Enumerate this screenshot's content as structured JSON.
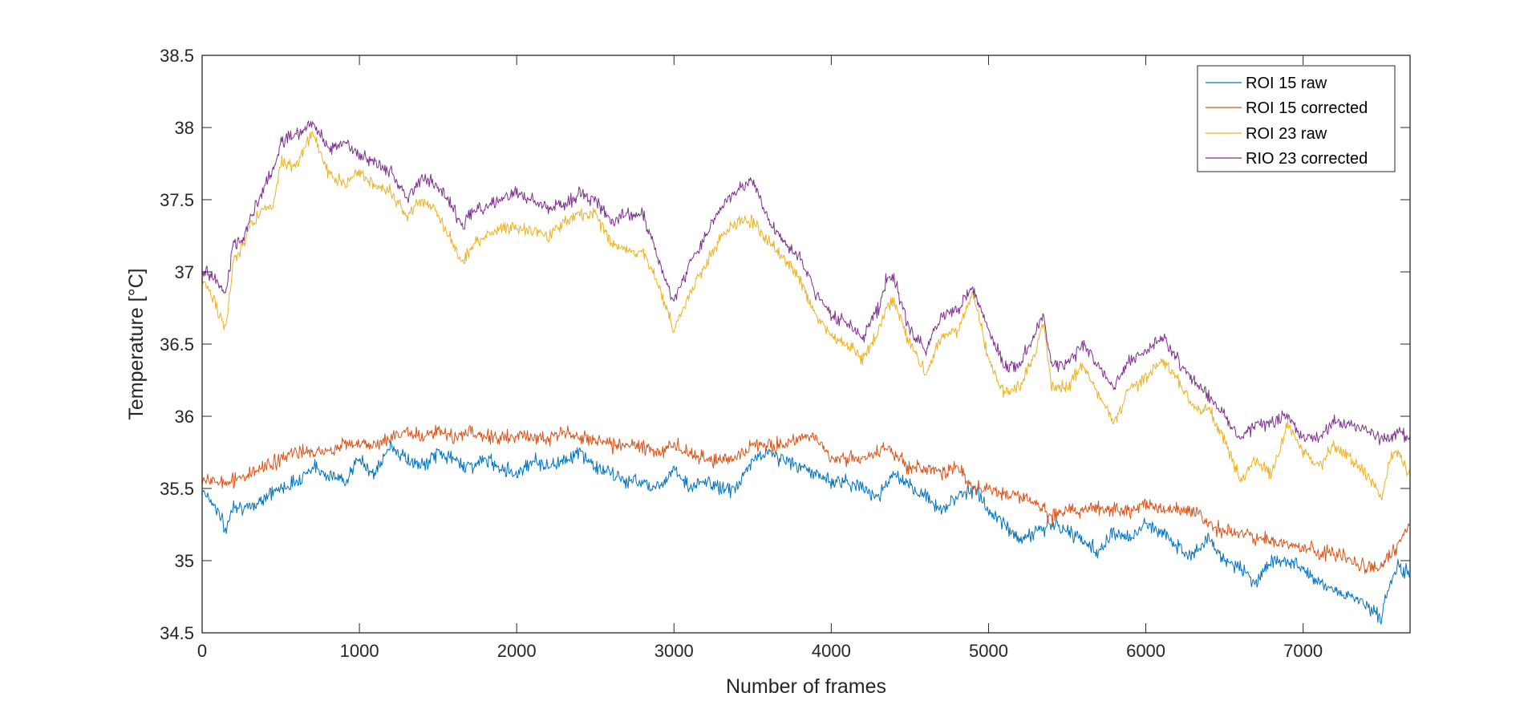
{
  "chart_data": {
    "type": "line",
    "title": "",
    "xlabel": "Number of frames",
    "ylabel": "Temperature [°C]",
    "xlim": [
      0,
      7680
    ],
    "ylim": [
      34.5,
      38.5
    ],
    "xticks": [
      0,
      1000,
      2000,
      3000,
      4000,
      5000,
      6000,
      7000
    ],
    "yticks": [
      34.5,
      35,
      35.5,
      36,
      36.5,
      37,
      37.5,
      38,
      38.5
    ],
    "xtick_labels": [
      "0",
      "1000",
      "2000",
      "3000",
      "4000",
      "5000",
      "6000",
      "7000"
    ],
    "ytick_labels": [
      "34.5",
      "35",
      "35.5",
      "36",
      "36.5",
      "37",
      "37.5",
      "38",
      "38.5"
    ],
    "grid": false,
    "box": true,
    "legend_position": "top-right",
    "series": [
      {
        "name": "ROI 15 raw",
        "color": "#0072BD",
        "noise": 0.05,
        "x": [
          0,
          100,
          150,
          200,
          300,
          400,
          500,
          600,
          700,
          800,
          900,
          1000,
          1100,
          1200,
          1300,
          1400,
          1500,
          1600,
          1700,
          1800,
          1900,
          2000,
          2100,
          2200,
          2300,
          2400,
          2500,
          2600,
          2700,
          2800,
          2900,
          3000,
          3100,
          3200,
          3300,
          3400,
          3500,
          3600,
          3700,
          3800,
          3900,
          4000,
          4100,
          4200,
          4300,
          4400,
          4500,
          4600,
          4700,
          4800,
          4900,
          5000,
          5100,
          5200,
          5300,
          5400,
          5500,
          5600,
          5700,
          5800,
          5900,
          6000,
          6100,
          6200,
          6300,
          6400,
          6500,
          6600,
          6700,
          6800,
          6900,
          7000,
          7100,
          7200,
          7300,
          7400,
          7500,
          7550,
          7600,
          7680
        ],
        "y": [
          35.5,
          35.35,
          35.2,
          35.4,
          35.35,
          35.45,
          35.5,
          35.55,
          35.65,
          35.6,
          35.55,
          35.7,
          35.6,
          35.8,
          35.7,
          35.65,
          35.75,
          35.7,
          35.65,
          35.7,
          35.65,
          35.6,
          35.7,
          35.65,
          35.7,
          35.75,
          35.65,
          35.6,
          35.55,
          35.55,
          35.5,
          35.65,
          35.5,
          35.55,
          35.5,
          35.5,
          35.7,
          35.75,
          35.7,
          35.65,
          35.6,
          35.55,
          35.55,
          35.5,
          35.45,
          35.6,
          35.5,
          35.45,
          35.35,
          35.45,
          35.5,
          35.35,
          35.25,
          35.15,
          35.2,
          35.25,
          35.2,
          35.15,
          35.05,
          35.2,
          35.15,
          35.25,
          35.2,
          35.1,
          35.05,
          35.15,
          35.0,
          34.95,
          34.85,
          35.0,
          35.0,
          34.95,
          34.85,
          34.8,
          34.75,
          34.7,
          34.6,
          34.85,
          34.95,
          34.9
        ]
      },
      {
        "name": "ROI 15 corrected",
        "color": "#D95319",
        "noise": 0.05,
        "x": [
          0,
          100,
          200,
          300,
          400,
          500,
          600,
          700,
          800,
          900,
          1000,
          1100,
          1200,
          1300,
          1400,
          1500,
          1600,
          1700,
          1800,
          1900,
          2000,
          2100,
          2200,
          2300,
          2400,
          2500,
          2600,
          2700,
          2800,
          2900,
          3000,
          3100,
          3200,
          3300,
          3400,
          3500,
          3600,
          3700,
          3800,
          3900,
          4000,
          4100,
          4200,
          4300,
          4400,
          4500,
          4600,
          4700,
          4800,
          4900,
          5000,
          5100,
          5200,
          5300,
          5400,
          5500,
          5600,
          5700,
          5800,
          5900,
          6000,
          6100,
          6200,
          6300,
          6400,
          6500,
          6600,
          6700,
          6800,
          6900,
          7000,
          7100,
          7200,
          7300,
          7400,
          7500,
          7600,
          7680
        ],
        "y": [
          35.55,
          35.55,
          35.55,
          35.6,
          35.65,
          35.7,
          35.75,
          35.75,
          35.75,
          35.8,
          35.8,
          35.8,
          35.85,
          35.9,
          35.85,
          35.9,
          35.85,
          35.9,
          35.85,
          35.85,
          35.85,
          35.85,
          35.85,
          35.9,
          35.85,
          35.85,
          35.8,
          35.8,
          35.8,
          35.75,
          35.8,
          35.75,
          35.7,
          35.7,
          35.7,
          35.8,
          35.8,
          35.8,
          35.85,
          35.85,
          35.7,
          35.7,
          35.7,
          35.75,
          35.75,
          35.65,
          35.65,
          35.6,
          35.65,
          35.5,
          35.5,
          35.45,
          35.45,
          35.4,
          35.3,
          35.35,
          35.35,
          35.35,
          35.35,
          35.35,
          35.4,
          35.35,
          35.35,
          35.35,
          35.25,
          35.2,
          35.2,
          35.15,
          35.15,
          35.1,
          35.1,
          35.05,
          35.05,
          35.0,
          34.95,
          34.95,
          35.1,
          35.25
        ]
      },
      {
        "name": "ROI 23 raw",
        "color": "#EDB120",
        "noise": 0.045,
        "x": [
          0,
          80,
          150,
          200,
          250,
          300,
          400,
          450,
          500,
          600,
          700,
          800,
          900,
          1000,
          1100,
          1200,
          1300,
          1400,
          1500,
          1600,
          1650,
          1700,
          1800,
          1900,
          2000,
          2100,
          2200,
          2300,
          2400,
          2500,
          2600,
          2700,
          2800,
          2900,
          3000,
          3100,
          3200,
          3300,
          3400,
          3500,
          3600,
          3700,
          3800,
          3900,
          4000,
          4100,
          4200,
          4300,
          4350,
          4400,
          4500,
          4600,
          4700,
          4800,
          4900,
          5000,
          5100,
          5200,
          5300,
          5350,
          5400,
          5500,
          5600,
          5700,
          5800,
          5900,
          6000,
          6100,
          6200,
          6300,
          6400,
          6500,
          6600,
          6700,
          6800,
          6900,
          7000,
          7100,
          7200,
          7300,
          7400,
          7500,
          7550,
          7600,
          7680
        ],
        "y": [
          36.95,
          36.8,
          36.6,
          37.1,
          37.15,
          37.3,
          37.45,
          37.45,
          37.75,
          37.75,
          37.95,
          37.7,
          37.6,
          37.7,
          37.6,
          37.55,
          37.4,
          37.5,
          37.4,
          37.2,
          37.05,
          37.15,
          37.25,
          37.3,
          37.3,
          37.3,
          37.25,
          37.35,
          37.4,
          37.4,
          37.2,
          37.15,
          37.15,
          36.9,
          36.6,
          36.85,
          37.05,
          37.25,
          37.35,
          37.35,
          37.2,
          37.1,
          36.95,
          36.7,
          36.55,
          36.5,
          36.4,
          36.6,
          36.75,
          36.8,
          36.5,
          36.3,
          36.55,
          36.6,
          36.85,
          36.4,
          36.15,
          36.2,
          36.45,
          36.65,
          36.2,
          36.2,
          36.35,
          36.15,
          35.95,
          36.2,
          36.25,
          36.4,
          36.25,
          36.05,
          36.05,
          35.85,
          35.55,
          35.7,
          35.6,
          35.95,
          35.75,
          35.65,
          35.8,
          35.7,
          35.6,
          35.45,
          35.7,
          35.75,
          35.6
        ]
      },
      {
        "name": "RIO 23 corrected",
        "color": "#7E2F8E",
        "noise": 0.045,
        "x": [
          0,
          80,
          150,
          200,
          250,
          300,
          400,
          450,
          500,
          600,
          700,
          800,
          900,
          1000,
          1100,
          1200,
          1300,
          1400,
          1500,
          1600,
          1650,
          1700,
          1800,
          1900,
          2000,
          2100,
          2200,
          2300,
          2400,
          2500,
          2600,
          2700,
          2800,
          2900,
          3000,
          3100,
          3200,
          3300,
          3400,
          3500,
          3600,
          3700,
          3800,
          3900,
          4000,
          4100,
          4200,
          4300,
          4350,
          4400,
          4500,
          4600,
          4700,
          4800,
          4900,
          5000,
          5100,
          5200,
          5300,
          5350,
          5400,
          5500,
          5600,
          5700,
          5800,
          5900,
          6000,
          6100,
          6200,
          6300,
          6400,
          6500,
          6600,
          6700,
          6800,
          6900,
          7000,
          7100,
          7200,
          7300,
          7400,
          7500,
          7550,
          7600,
          7680
        ],
        "y": [
          37.0,
          36.95,
          36.85,
          37.2,
          37.2,
          37.35,
          37.6,
          37.7,
          37.9,
          37.95,
          38.05,
          37.85,
          37.9,
          37.8,
          37.75,
          37.7,
          37.5,
          37.65,
          37.6,
          37.45,
          37.3,
          37.4,
          37.45,
          37.5,
          37.55,
          37.5,
          37.45,
          37.45,
          37.55,
          37.5,
          37.35,
          37.4,
          37.4,
          37.1,
          36.8,
          37.05,
          37.25,
          37.45,
          37.55,
          37.65,
          37.35,
          37.2,
          37.1,
          36.85,
          36.7,
          36.65,
          36.55,
          36.75,
          36.95,
          36.95,
          36.6,
          36.45,
          36.7,
          36.75,
          36.9,
          36.6,
          36.35,
          36.35,
          36.6,
          36.7,
          36.35,
          36.35,
          36.5,
          36.35,
          36.2,
          36.4,
          36.45,
          36.55,
          36.4,
          36.25,
          36.15,
          36.0,
          35.85,
          35.95,
          35.95,
          36.0,
          35.85,
          35.85,
          35.95,
          35.95,
          35.9,
          35.85,
          35.85,
          35.9,
          35.85
        ]
      }
    ]
  }
}
